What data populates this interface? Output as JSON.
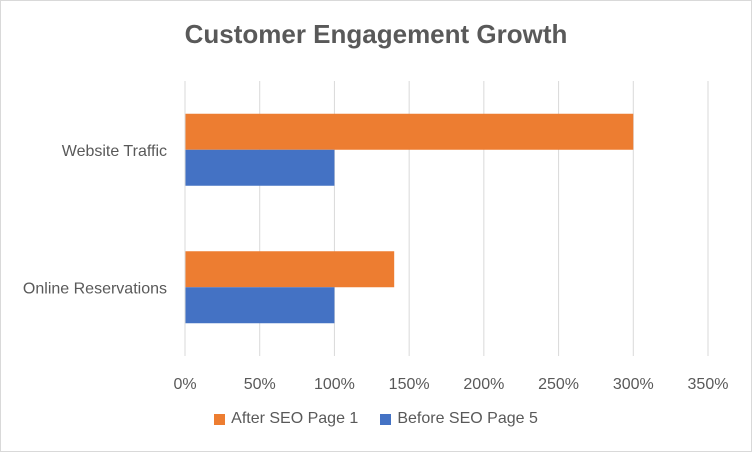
{
  "chart_data": {
    "type": "bar",
    "orientation": "horizontal",
    "title": "Customer Engagement Growth",
    "xlabel": "",
    "ylabel": "",
    "categories": [
      "Online Reservations",
      "Website Traffic"
    ],
    "series": [
      {
        "name": "Before SEO Page 5",
        "color": "#4472c4",
        "values": [
          100,
          100
        ]
      },
      {
        "name": "After SEO Page 1",
        "color": "#ed7d31",
        "values": [
          140,
          300
        ]
      }
    ],
    "xlim": [
      0,
      350
    ],
    "xticks": [
      0,
      50,
      100,
      150,
      200,
      250,
      300,
      350
    ],
    "tick_suffix": "%",
    "grid": "vertical",
    "legend_position": "bottom"
  }
}
